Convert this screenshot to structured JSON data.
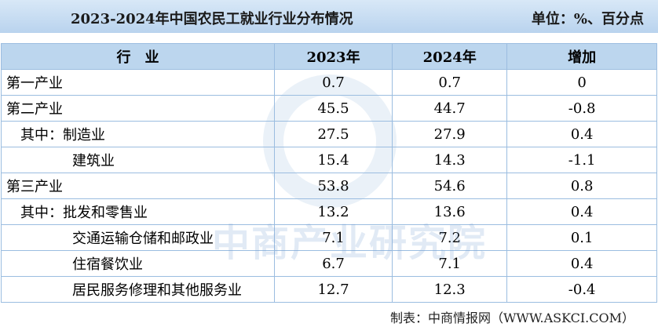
{
  "header": {
    "title": "2023-2024年中国农民工就业行业分布情况",
    "unit": "单位：%、百分点"
  },
  "table": {
    "columns": [
      "行　业",
      "2023年",
      "2024年",
      "增加"
    ],
    "rows": [
      [
        "第一产业",
        "0.7",
        "0.7",
        "0"
      ],
      [
        "第二产业",
        "45.5",
        "44.7",
        "-0.8"
      ],
      [
        "其中：制造业",
        "27.5",
        "27.9",
        "0.4"
      ],
      [
        "建筑业",
        "15.4",
        "14.3",
        "-1.1"
      ],
      [
        "第三产业",
        "53.8",
        "54.6",
        "0.8"
      ],
      [
        "其中：批发和零售业",
        "13.2",
        "13.6",
        "0.4"
      ],
      [
        "交通运输仓储和邮政业",
        "7.1",
        "7.2",
        "0.1"
      ],
      [
        "住宿餐饮业",
        "6.7",
        "7.1",
        "0.4"
      ],
      [
        "居民服务修理和其他服务业",
        "12.7",
        "12.3",
        "-0.4"
      ]
    ]
  },
  "watermark": "中商产业研究院",
  "footer": "制表：中商情报网（WWW.ASKCI.COM）"
}
